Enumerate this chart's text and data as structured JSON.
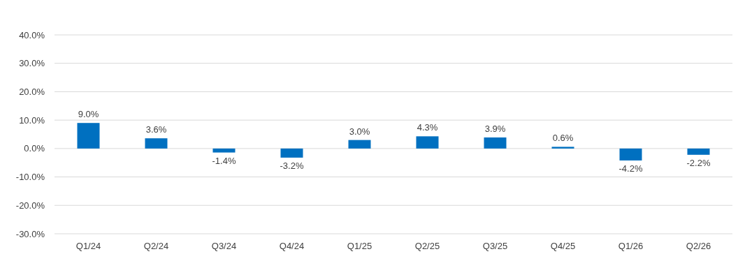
{
  "chart_data": {
    "type": "bar",
    "categories": [
      "Q1/24",
      "Q2/24",
      "Q3/24",
      "Q4/24",
      "Q1/25",
      "Q2/25",
      "Q3/25",
      "Q4/25",
      "Q1/26",
      "Q2/26"
    ],
    "values": [
      9.0,
      3.6,
      -1.4,
      -3.2,
      3.0,
      4.3,
      3.9,
      0.6,
      -4.2,
      -2.2
    ],
    "value_labels": [
      "9.0%",
      "3.6%",
      "-1.4%",
      "-3.2%",
      "3.0%",
      "4.3%",
      "3.9%",
      "0.6%",
      "-4.2%",
      "-2.2%"
    ],
    "color": "#0070c0",
    "ylim": [
      -30,
      40
    ],
    "yticks": [
      {
        "value": -30,
        "label": "-30.0%"
      },
      {
        "value": -20,
        "label": "-20.0%"
      },
      {
        "value": -10,
        "label": "-10.0%"
      },
      {
        "value": 0,
        "label": "0.0%"
      },
      {
        "value": 10,
        "label": "10.0%"
      },
      {
        "value": 20,
        "label": "20.0%"
      },
      {
        "value": 30,
        "label": "30.0%"
      },
      {
        "value": 40,
        "label": "40.0%"
      }
    ],
    "grid": "y"
  }
}
